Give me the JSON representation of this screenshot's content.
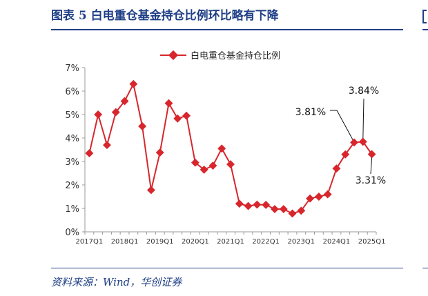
{
  "header": {
    "title": "图表 5   白电重仓基金持仓比例环比略有下降"
  },
  "footer": {
    "source": "资料来源：Wind，华创证券"
  },
  "colors": {
    "series": "#d7262c",
    "brand": "#1f3f86",
    "axis": "#999999"
  },
  "chart_data": {
    "type": "line",
    "title": "",
    "xlabel": "",
    "ylabel": "",
    "ylim": [
      0,
      7
    ],
    "yticks": [
      "0%",
      "1%",
      "2%",
      "3%",
      "4%",
      "5%",
      "6%",
      "7%"
    ],
    "grid": false,
    "legend": "top-center",
    "x_tick_labels": [
      "2017Q1",
      "2018Q1",
      "2019Q1",
      "2020Q1",
      "2021Q1",
      "2022Q1",
      "2023Q1",
      "2024Q1",
      "2025Q1"
    ],
    "x": [
      "2017Q1",
      "2017Q2",
      "2017Q3",
      "2017Q4",
      "2018Q1",
      "2018Q2",
      "2018Q3",
      "2018Q4",
      "2019Q1",
      "2019Q2",
      "2019Q3",
      "2019Q4",
      "2020Q1",
      "2020Q2",
      "2020Q3",
      "2020Q4",
      "2021Q1",
      "2021Q2",
      "2021Q3",
      "2021Q4",
      "2022Q1",
      "2022Q2",
      "2022Q3",
      "2022Q4",
      "2023Q1",
      "2023Q2",
      "2023Q3",
      "2023Q4",
      "2024Q1",
      "2024Q2",
      "2024Q3",
      "2024Q4",
      "2025Q1"
    ],
    "series": [
      {
        "name": "白电重仓基金持仓比例",
        "values": [
          3.35,
          5.0,
          3.7,
          5.1,
          5.57,
          6.3,
          4.5,
          1.78,
          3.38,
          5.48,
          4.83,
          4.95,
          2.95,
          2.65,
          2.82,
          3.55,
          2.88,
          1.2,
          1.1,
          1.16,
          1.15,
          0.97,
          0.97,
          0.78,
          0.9,
          1.42,
          1.5,
          1.6,
          2.7,
          3.3,
          3.81,
          3.84,
          3.31
        ]
      }
    ],
    "annotations": [
      {
        "text": "3.81%",
        "x": "2024Q3"
      },
      {
        "text": "3.84%",
        "x": "2024Q4"
      },
      {
        "text": "3.31%",
        "x": "2025Q1"
      }
    ]
  }
}
